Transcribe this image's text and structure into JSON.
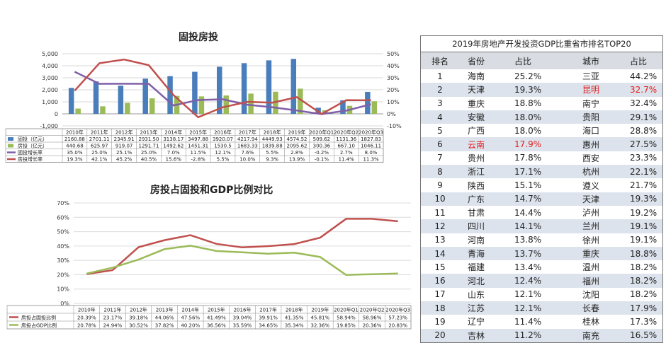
{
  "chart_data": [
    {
      "type": "bar+line",
      "title": "固投房投",
      "categories": [
        "2010年",
        "2011年",
        "2012年",
        "2013年",
        "2014年",
        "2015年",
        "2016年",
        "2017年",
        "2018年",
        "2019年",
        "2020年Q1",
        "2020年Q2",
        "2020年Q3"
      ],
      "left_axis": {
        "ylim": [
          -1000,
          5000
        ],
        "ticks": [
          "-1,000",
          "0",
          "1,000",
          "2,000",
          "3,000",
          "4,000",
          "5,000"
        ]
      },
      "right_axis": {
        "ylim": [
          -10,
          50
        ],
        "ticks": [
          "-10%",
          "0%",
          "10%",
          "20%",
          "30%",
          "40%",
          "50%"
        ]
      },
      "series": [
        {
          "name": "固投（亿元）",
          "kind": "bar",
          "color": "#4a7ebb",
          "values": [
            2160.88,
            2701.11,
            2345.91,
            2931.5,
            3138.17,
            3497.88,
            3920.07,
            4217.94,
            4449.93,
            4574.52,
            509.62,
            1131.36,
            1827.83
          ],
          "labels": [
            "2160.88",
            "2701.11",
            "2345.91",
            "2931.50",
            "3138.17",
            "3497.88",
            "3920.07",
            "4217.94",
            "4449.93",
            "4574.52",
            "509.62",
            "1131.36",
            "1827.83"
          ]
        },
        {
          "name": "房投（亿元）",
          "kind": "bar",
          "color": "#9bbb59",
          "values": [
            440.68,
            625.97,
            919.07,
            1291.71,
            1492.62,
            1451.31,
            1530.5,
            1683.33,
            1839.88,
            2095.62,
            300.36,
            667.1,
            1046.11
          ],
          "labels": [
            "440.68",
            "625.97",
            "919.07",
            "1291.71",
            "1492.62",
            "1451.31",
            "1530.5",
            "1683.33",
            "1839.88",
            "2095.62",
            "300.36",
            "667.10",
            "1046.11"
          ]
        },
        {
          "name": "固投增长率",
          "kind": "line",
          "color": "#7f5fa8",
          "values": [
            35.0,
            25.0,
            25.1,
            25.0,
            7.0,
            11.5,
            12.1,
            7.6,
            5.5,
            2.8,
            -0.2,
            2.7,
            8.0
          ],
          "labels": [
            "35.0%",
            "25.0%",
            "25.1%",
            "25.0%",
            "7.0%",
            "11.5%",
            "12.1%",
            "7.6%",
            "5.5%",
            "2.8%",
            "-0.2%",
            "2.7%",
            "8.0%"
          ]
        },
        {
          "name": "房投增长率",
          "kind": "line",
          "color": "#c0504d",
          "values": [
            19.3,
            42.1,
            45.2,
            40.5,
            15.6,
            -2.8,
            5.5,
            10.0,
            9.3,
            13.9,
            -0.1,
            11.4,
            11.3
          ],
          "labels": [
            "19.3%",
            "42.1%",
            "45.2%",
            "40.5%",
            "15.6%",
            "-2.8%",
            "5.5%",
            "10.0%",
            "9.3%",
            "13.9%",
            "-0.1%",
            "11.4%",
            "11.3%"
          ]
        }
      ],
      "grid": true
    },
    {
      "type": "line",
      "title": "房投占固投和GDP比例对比",
      "categories": [
        "2010年",
        "2011年",
        "2012年",
        "2013年",
        "2014年",
        "2015年",
        "2016年",
        "2017年",
        "2018年",
        "2019年",
        "2020年Q1",
        "2020年Q2",
        "2020年Q3"
      ],
      "ylim": [
        0,
        70
      ],
      "ticks": [
        "0%",
        "10%",
        "20%",
        "30%",
        "40%",
        "50%",
        "60%",
        "70%"
      ],
      "series": [
        {
          "name": "房投占固投比例",
          "color": "#c0504d",
          "values": [
            20.39,
            23.17,
            39.18,
            44.06,
            47.56,
            41.49,
            39.04,
            39.91,
            41.35,
            45.81,
            58.94,
            58.96,
            57.23
          ],
          "labels": [
            "20.39%",
            "23.17%",
            "39.18%",
            "44.06%",
            "47.56%",
            "41.49%",
            "39.04%",
            "39.91%",
            "41.35%",
            "45.81%",
            "58.94%",
            "58.96%",
            "57.23%"
          ]
        },
        {
          "name": "房投占GDP比例",
          "color": "#9bbb59",
          "values": [
            20.78,
            24.94,
            30.52,
            37.82,
            40.2,
            36.56,
            35.59,
            34.65,
            35.34,
            32.36,
            19.85,
            20.36,
            20.83
          ],
          "labels": [
            "20.78%",
            "24.94%",
            "30.52%",
            "37.82%",
            "40.20%",
            "36.56%",
            "35.59%",
            "34.65%",
            "35.34%",
            "32.36%",
            "19.85%",
            "20.36%",
            "20.83%"
          ]
        }
      ],
      "grid": true
    },
    {
      "type": "table",
      "title": "2019年房地产开发投资GDP比重省市排名TOP20",
      "headers": [
        "排名",
        "省份",
        "占比",
        "城市",
        "占比"
      ],
      "highlight_color": "#e02020",
      "rows": [
        {
          "rank": "1",
          "prov": "海南",
          "pct": "25.2%",
          "city": "三亚",
          "cpct": "44.2%"
        },
        {
          "rank": "2",
          "prov": "天津",
          "pct": "19.3%",
          "city": "昆明",
          "cpct": "32.7%",
          "city_hl": true
        },
        {
          "rank": "3",
          "prov": "重庆",
          "pct": "18.8%",
          "city": "南宁",
          "cpct": "32.4%"
        },
        {
          "rank": "4",
          "prov": "安徽",
          "pct": "18.0%",
          "city": "贵阳",
          "cpct": "29.1%"
        },
        {
          "rank": "5",
          "prov": "广西",
          "pct": "18.0%",
          "city": "海口",
          "cpct": "28.8%"
        },
        {
          "rank": "6",
          "prov": "云南",
          "pct": "17.9%",
          "city": "惠州",
          "cpct": "27.5%",
          "prov_hl": true
        },
        {
          "rank": "7",
          "prov": "贵州",
          "pct": "17.8%",
          "city": "西安",
          "cpct": "23.3%"
        },
        {
          "rank": "8",
          "prov": "浙江",
          "pct": "17.1%",
          "city": "杭州",
          "cpct": "22.1%"
        },
        {
          "rank": "9",
          "prov": "陕西",
          "pct": "15.1%",
          "city": "遵义",
          "cpct": "21.7%"
        },
        {
          "rank": "10",
          "prov": "广东",
          "pct": "14.7%",
          "city": "天津",
          "cpct": "19.3%"
        },
        {
          "rank": "11",
          "prov": "甘肃",
          "pct": "14.4%",
          "city": "泸州",
          "cpct": "19.2%"
        },
        {
          "rank": "12",
          "prov": "四川",
          "pct": "14.1%",
          "city": "兰州",
          "cpct": "19.1%"
        },
        {
          "rank": "13",
          "prov": "河南",
          "pct": "13.8%",
          "city": "徐州",
          "cpct": "19.1%"
        },
        {
          "rank": "14",
          "prov": "青海",
          "pct": "13.7%",
          "city": "重庆",
          "cpct": "18.8%"
        },
        {
          "rank": "15",
          "prov": "福建",
          "pct": "13.4%",
          "city": "温州",
          "cpct": "18.2%"
        },
        {
          "rank": "16",
          "prov": "河北",
          "pct": "12.4%",
          "city": "福州",
          "cpct": "18.2%"
        },
        {
          "rank": "17",
          "prov": "山东",
          "pct": "12.1%",
          "city": "沈阳",
          "cpct": "18.2%"
        },
        {
          "rank": "18",
          "prov": "江苏",
          "pct": "12.1%",
          "city": "长春",
          "cpct": "17.9%"
        },
        {
          "rank": "19",
          "prov": "辽宁",
          "pct": "11.4%",
          "city": "桂林",
          "cpct": "17.3%"
        },
        {
          "rank": "20",
          "prov": "吉林",
          "pct": "11.2%",
          "city": "南充",
          "cpct": "16.5%"
        }
      ]
    }
  ]
}
